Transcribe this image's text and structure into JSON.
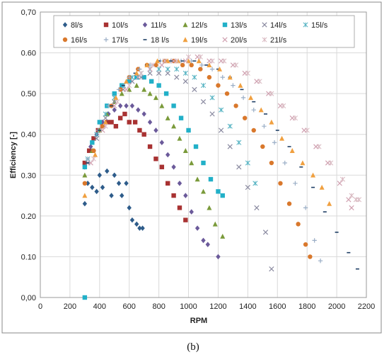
{
  "caption": "(b)",
  "chart_data": {
    "type": "scatter",
    "xlabel": "RPM",
    "ylabel": "Efficiency [-]",
    "xlim": [
      0,
      2200
    ],
    "ylim": [
      0,
      0.7
    ],
    "xticks": [
      0,
      200,
      400,
      600,
      800,
      1000,
      1200,
      1400,
      1600,
      1800,
      2000,
      2200
    ],
    "yticks": [
      0.0,
      0.1,
      0.2,
      0.3,
      0.4,
      0.5,
      0.6,
      0.7
    ],
    "ytick_labels": [
      "0,00",
      "0.10",
      "0.20",
      "0.30",
      "0.40",
      "0.50",
      "0.60",
      "0,70"
    ],
    "grid": true,
    "legend_position": "top",
    "series": [
      {
        "name": "8l/s",
        "color": "#2e5c8a",
        "marker": "diamond",
        "points": [
          [
            300,
            0.23
          ],
          [
            320,
            0.28
          ],
          [
            350,
            0.27
          ],
          [
            380,
            0.26
          ],
          [
            400,
            0.3
          ],
          [
            420,
            0.27
          ],
          [
            450,
            0.31
          ],
          [
            480,
            0.25
          ],
          [
            500,
            0.3
          ],
          [
            530,
            0.28
          ],
          [
            550,
            0.25
          ],
          [
            580,
            0.28
          ],
          [
            600,
            0.22
          ],
          [
            620,
            0.19
          ],
          [
            650,
            0.18
          ],
          [
            670,
            0.17
          ],
          [
            690,
            0.17
          ]
        ]
      },
      {
        "name": "10l/s",
        "color": "#a83232",
        "marker": "square",
        "points": [
          [
            300,
            0.33
          ],
          [
            330,
            0.36
          ],
          [
            360,
            0.39
          ],
          [
            390,
            0.41
          ],
          [
            420,
            0.42
          ],
          [
            450,
            0.43
          ],
          [
            480,
            0.43
          ],
          [
            510,
            0.42
          ],
          [
            540,
            0.44
          ],
          [
            570,
            0.45
          ],
          [
            600,
            0.43
          ],
          [
            640,
            0.43
          ],
          [
            670,
            0.41
          ],
          [
            700,
            0.4
          ],
          [
            740,
            0.37
          ],
          [
            780,
            0.34
          ],
          [
            820,
            0.32
          ],
          [
            860,
            0.28
          ],
          [
            900,
            0.25
          ],
          [
            940,
            0.22
          ],
          [
            980,
            0.19
          ]
        ]
      },
      {
        "name": "11l/s",
        "color": "#6b5a9a",
        "marker": "diamond",
        "points": [
          [
            300,
            0.32
          ],
          [
            340,
            0.37
          ],
          [
            380,
            0.4
          ],
          [
            420,
            0.43
          ],
          [
            460,
            0.45
          ],
          [
            500,
            0.46
          ],
          [
            540,
            0.47
          ],
          [
            580,
            0.47
          ],
          [
            620,
            0.47
          ],
          [
            660,
            0.46
          ],
          [
            700,
            0.45
          ],
          [
            740,
            0.43
          ],
          [
            780,
            0.41
          ],
          [
            820,
            0.38
          ],
          [
            860,
            0.35
          ],
          [
            900,
            0.32
          ],
          [
            940,
            0.28
          ],
          [
            980,
            0.25
          ],
          [
            1020,
            0.21
          ],
          [
            1060,
            0.17
          ],
          [
            1100,
            0.14
          ],
          [
            1130,
            0.13
          ],
          [
            1200,
            0.1
          ]
        ]
      },
      {
        "name": "12l/s",
        "color": "#7a9a3a",
        "marker": "triangle",
        "points": [
          [
            300,
            0.3
          ],
          [
            350,
            0.36
          ],
          [
            400,
            0.41
          ],
          [
            450,
            0.45
          ],
          [
            500,
            0.48
          ],
          [
            550,
            0.5
          ],
          [
            600,
            0.51
          ],
          [
            650,
            0.52
          ],
          [
            700,
            0.51
          ],
          [
            740,
            0.5
          ],
          [
            780,
            0.49
          ],
          [
            820,
            0.47
          ],
          [
            860,
            0.44
          ],
          [
            900,
            0.42
          ],
          [
            940,
            0.39
          ],
          [
            980,
            0.36
          ],
          [
            1020,
            0.33
          ],
          [
            1060,
            0.29
          ],
          [
            1100,
            0.26
          ],
          [
            1140,
            0.22
          ],
          [
            1180,
            0.18
          ],
          [
            1230,
            0.15
          ]
        ]
      },
      {
        "name": "13l/s",
        "color": "#22b0c8",
        "marker": "square",
        "points": [
          [
            300,
            0.0
          ],
          [
            300,
            0.32
          ],
          [
            350,
            0.38
          ],
          [
            400,
            0.43
          ],
          [
            450,
            0.47
          ],
          [
            500,
            0.5
          ],
          [
            550,
            0.52
          ],
          [
            600,
            0.53
          ],
          [
            650,
            0.54
          ],
          [
            700,
            0.54
          ],
          [
            750,
            0.53
          ],
          [
            800,
            0.52
          ],
          [
            850,
            0.5
          ],
          [
            900,
            0.47
          ],
          [
            950,
            0.44
          ],
          [
            1000,
            0.41
          ],
          [
            1050,
            0.37
          ],
          [
            1100,
            0.33
          ],
          [
            1150,
            0.29
          ],
          [
            1200,
            0.26
          ],
          [
            1230,
            0.25
          ]
        ]
      },
      {
        "name": "14l/s",
        "color": "#8a8aa0",
        "marker": "x",
        "points": [
          [
            320,
            0.33
          ],
          [
            380,
            0.39
          ],
          [
            440,
            0.44
          ],
          [
            500,
            0.48
          ],
          [
            560,
            0.51
          ],
          [
            620,
            0.53
          ],
          [
            680,
            0.54
          ],
          [
            740,
            0.55
          ],
          [
            800,
            0.55
          ],
          [
            860,
            0.55
          ],
          [
            920,
            0.54
          ],
          [
            980,
            0.53
          ],
          [
            1040,
            0.51
          ],
          [
            1100,
            0.48
          ],
          [
            1160,
            0.45
          ],
          [
            1220,
            0.41
          ],
          [
            1280,
            0.37
          ],
          [
            1340,
            0.32
          ],
          [
            1400,
            0.27
          ],
          [
            1460,
            0.22
          ],
          [
            1520,
            0.16
          ],
          [
            1560,
            0.07
          ]
        ]
      },
      {
        "name": "15l/s",
        "color": "#4fb0c0",
        "marker": "asterisk",
        "points": [
          [
            320,
            0.34
          ],
          [
            380,
            0.4
          ],
          [
            440,
            0.45
          ],
          [
            500,
            0.49
          ],
          [
            560,
            0.52
          ],
          [
            620,
            0.54
          ],
          [
            680,
            0.55
          ],
          [
            740,
            0.56
          ],
          [
            800,
            0.56
          ],
          [
            860,
            0.56
          ],
          [
            920,
            0.56
          ],
          [
            980,
            0.55
          ],
          [
            1040,
            0.54
          ],
          [
            1100,
            0.52
          ],
          [
            1160,
            0.49
          ],
          [
            1220,
            0.46
          ],
          [
            1280,
            0.42
          ],
          [
            1340,
            0.38
          ],
          [
            1400,
            0.33
          ],
          [
            1450,
            0.28
          ]
        ]
      },
      {
        "name": "16l/s",
        "color": "#d9782c",
        "marker": "circle",
        "points": [
          [
            300,
            0.28
          ],
          [
            360,
            0.36
          ],
          [
            420,
            0.42
          ],
          [
            480,
            0.47
          ],
          [
            540,
            0.51
          ],
          [
            600,
            0.54
          ],
          [
            660,
            0.56
          ],
          [
            720,
            0.57
          ],
          [
            780,
            0.57
          ],
          [
            840,
            0.58
          ],
          [
            900,
            0.58
          ],
          [
            960,
            0.57
          ],
          [
            1020,
            0.57
          ],
          [
            1080,
            0.56
          ],
          [
            1140,
            0.54
          ],
          [
            1200,
            0.52
          ],
          [
            1260,
            0.5
          ],
          [
            1320,
            0.47
          ],
          [
            1380,
            0.44
          ],
          [
            1440,
            0.41
          ],
          [
            1500,
            0.37
          ],
          [
            1560,
            0.33
          ],
          [
            1620,
            0.28
          ],
          [
            1680,
            0.23
          ],
          [
            1740,
            0.18
          ],
          [
            1790,
            0.13
          ],
          [
            1820,
            0.1
          ]
        ]
      },
      {
        "name": "17l/s",
        "color": "#9aaec6",
        "marker": "plus",
        "points": [
          [
            320,
            0.34
          ],
          [
            390,
            0.41
          ],
          [
            460,
            0.47
          ],
          [
            530,
            0.51
          ],
          [
            600,
            0.54
          ],
          [
            670,
            0.56
          ],
          [
            740,
            0.57
          ],
          [
            810,
            0.58
          ],
          [
            880,
            0.58
          ],
          [
            950,
            0.58
          ],
          [
            1020,
            0.58
          ],
          [
            1090,
            0.57
          ],
          [
            1160,
            0.56
          ],
          [
            1230,
            0.54
          ],
          [
            1300,
            0.52
          ],
          [
            1370,
            0.49
          ],
          [
            1440,
            0.46
          ],
          [
            1510,
            0.42
          ],
          [
            1580,
            0.38
          ],
          [
            1650,
            0.33
          ],
          [
            1720,
            0.28
          ],
          [
            1790,
            0.22
          ],
          [
            1850,
            0.14
          ],
          [
            1890,
            0.09
          ]
        ]
      },
      {
        "name": "18 l/s",
        "color": "#1f3f66",
        "marker": "dash",
        "points": [
          [
            320,
            0.33
          ],
          [
            400,
            0.41
          ],
          [
            480,
            0.47
          ],
          [
            560,
            0.52
          ],
          [
            640,
            0.55
          ],
          [
            720,
            0.57
          ],
          [
            800,
            0.58
          ],
          [
            880,
            0.58
          ],
          [
            960,
            0.58
          ],
          [
            1040,
            0.58
          ],
          [
            1120,
            0.57
          ],
          [
            1200,
            0.56
          ],
          [
            1280,
            0.54
          ],
          [
            1360,
            0.51
          ],
          [
            1440,
            0.48
          ],
          [
            1520,
            0.45
          ],
          [
            1600,
            0.41
          ],
          [
            1680,
            0.37
          ],
          [
            1760,
            0.32
          ],
          [
            1840,
            0.27
          ],
          [
            1920,
            0.21
          ],
          [
            2000,
            0.16
          ],
          [
            2080,
            0.11
          ],
          [
            2140,
            0.07
          ]
        ]
      },
      {
        "name": "19l/s",
        "color": "#f0a040",
        "marker": "triangle",
        "points": [
          [
            300,
            0.25
          ],
          [
            370,
            0.35
          ],
          [
            440,
            0.43
          ],
          [
            510,
            0.49
          ],
          [
            580,
            0.53
          ],
          [
            650,
            0.55
          ],
          [
            720,
            0.57
          ],
          [
            790,
            0.58
          ],
          [
            860,
            0.58
          ],
          [
            930,
            0.58
          ],
          [
            1000,
            0.58
          ],
          [
            1070,
            0.58
          ],
          [
            1140,
            0.57
          ],
          [
            1210,
            0.56
          ],
          [
            1280,
            0.54
          ],
          [
            1350,
            0.52
          ],
          [
            1420,
            0.49
          ],
          [
            1490,
            0.46
          ],
          [
            1560,
            0.43
          ],
          [
            1630,
            0.39
          ],
          [
            1700,
            0.36
          ],
          [
            1770,
            0.33
          ],
          [
            1840,
            0.3
          ],
          [
            1900,
            0.27
          ],
          [
            1950,
            0.23
          ]
        ]
      },
      {
        "name": "20l/s",
        "color": "#d0a0b0",
        "marker": "x",
        "points": [
          [
            340,
            0.33
          ],
          [
            420,
            0.41
          ],
          [
            500,
            0.47
          ],
          [
            580,
            0.51
          ],
          [
            660,
            0.54
          ],
          [
            740,
            0.56
          ],
          [
            820,
            0.57
          ],
          [
            900,
            0.58
          ],
          [
            980,
            0.58
          ],
          [
            1060,
            0.59
          ],
          [
            1140,
            0.58
          ],
          [
            1220,
            0.58
          ],
          [
            1300,
            0.57
          ],
          [
            1380,
            0.55
          ],
          [
            1460,
            0.53
          ],
          [
            1540,
            0.5
          ],
          [
            1620,
            0.47
          ],
          [
            1700,
            0.44
          ],
          [
            1780,
            0.41
          ],
          [
            1860,
            0.37
          ],
          [
            1940,
            0.33
          ],
          [
            2020,
            0.28
          ],
          [
            2080,
            0.24
          ],
          [
            2100,
            0.22
          ]
        ]
      },
      {
        "name": "21l/s",
        "color": "#d8b8c0",
        "marker": "asterisk",
        "points": [
          [
            360,
            0.34
          ],
          [
            440,
            0.42
          ],
          [
            520,
            0.48
          ],
          [
            600,
            0.52
          ],
          [
            680,
            0.55
          ],
          [
            760,
            0.57
          ],
          [
            840,
            0.58
          ],
          [
            920,
            0.58
          ],
          [
            1000,
            0.59
          ],
          [
            1080,
            0.59
          ],
          [
            1160,
            0.58
          ],
          [
            1240,
            0.58
          ],
          [
            1320,
            0.57
          ],
          [
            1400,
            0.55
          ],
          [
            1480,
            0.53
          ],
          [
            1560,
            0.5
          ],
          [
            1640,
            0.47
          ],
          [
            1720,
            0.44
          ],
          [
            1800,
            0.41
          ],
          [
            1880,
            0.37
          ],
          [
            1960,
            0.33
          ],
          [
            2040,
            0.29
          ],
          [
            2100,
            0.25
          ],
          [
            2130,
            0.24
          ],
          [
            2150,
            0.24
          ]
        ]
      }
    ]
  }
}
